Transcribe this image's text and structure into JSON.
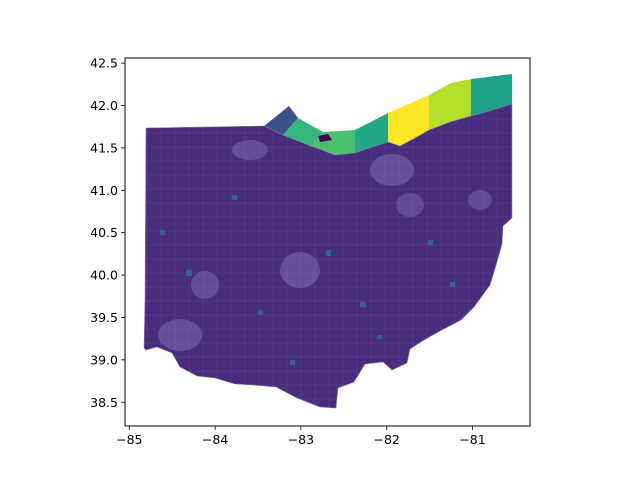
{
  "figure": {
    "kind": "choropleth-map",
    "xlim": [
      -85.05,
      -80.33
    ],
    "ylim": [
      38.22,
      42.56
    ],
    "x_ticks": [
      {
        "value": -85,
        "label": "−85"
      },
      {
        "value": -84,
        "label": "−84"
      },
      {
        "value": -83,
        "label": "−83"
      },
      {
        "value": -82,
        "label": "−82"
      },
      {
        "value": -81,
        "label": "−81"
      }
    ],
    "y_ticks": [
      {
        "value": 38.5,
        "label": "38.5"
      },
      {
        "value": 39.0,
        "label": "39.0"
      },
      {
        "value": 39.5,
        "label": "39.5"
      },
      {
        "value": 40.0,
        "label": "40.0"
      },
      {
        "value": 40.5,
        "label": "40.5"
      },
      {
        "value": 41.0,
        "label": "41.0"
      },
      {
        "value": 41.5,
        "label": "41.5"
      },
      {
        "value": 42.0,
        "label": "42.0"
      },
      {
        "value": 42.5,
        "label": "42.5"
      }
    ],
    "colormap": "viridis",
    "land_color": "#472d7b",
    "border_color": "#8a78b8",
    "lake_erie_regions": [
      {
        "name": "lake-segment-1",
        "color": "#3b528b"
      },
      {
        "name": "lake-segment-2",
        "color": "#35b779"
      },
      {
        "name": "lake-segment-3",
        "color": "#4ac16d"
      },
      {
        "name": "lake-segment-4",
        "color": "#22a884"
      },
      {
        "name": "lake-segment-5",
        "color": "#fde725"
      },
      {
        "name": "lake-segment-6",
        "color": "#b5de2b"
      },
      {
        "name": "lake-segment-7",
        "color": "#1fa187"
      }
    ]
  }
}
